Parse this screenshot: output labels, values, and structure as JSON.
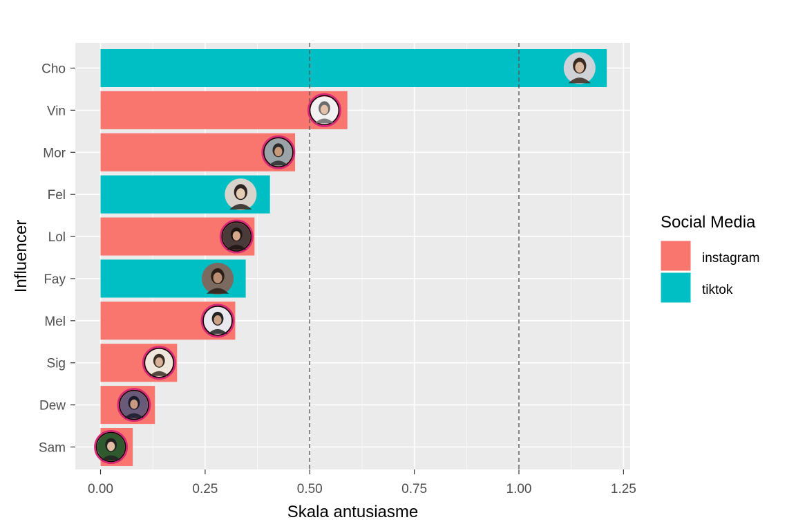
{
  "chart_data": {
    "type": "bar",
    "orientation": "horizontal",
    "title": "",
    "xlabel": "Skala antusiasme",
    "ylabel": "Influencer",
    "xlim": [
      -0.06,
      1.27
    ],
    "xticks": [
      0.0,
      0.25,
      0.5,
      0.75,
      1.0,
      1.25
    ],
    "xtick_labels": [
      "0.00",
      "0.25",
      "0.50",
      "0.75",
      "1.00",
      "1.25"
    ],
    "reference_lines": [
      0.5,
      1.0
    ],
    "grid": true,
    "legend_position": "right",
    "categories": [
      "Cho",
      "Vin",
      "Mor",
      "Fel",
      "Lol",
      "Fay",
      "Mel",
      "Sig",
      "Dew",
      "Sam"
    ],
    "values": [
      1.21,
      0.59,
      0.465,
      0.405,
      0.368,
      0.347,
      0.322,
      0.183,
      0.13,
      0.077
    ],
    "avatar_positions": [
      1.145,
      0.535,
      0.425,
      0.335,
      0.325,
      0.28,
      0.28,
      0.14,
      0.08,
      0.025
    ],
    "groups": [
      "tiktok",
      "instagram",
      "instagram",
      "tiktok",
      "instagram",
      "tiktok",
      "instagram",
      "instagram",
      "instagram",
      "instagram"
    ],
    "legend": {
      "title": "Social Media",
      "entries": [
        {
          "name": "instagram",
          "color": "#F8766D"
        },
        {
          "name": "tiktok",
          "color": "#00BFC4"
        }
      ]
    }
  },
  "colors": {
    "panel_bg": "#EBEBEB",
    "grid_major": "#FFFFFF",
    "instagram": "#F8766D",
    "tiktok": "#00BFC4",
    "reference_line": "#666666"
  }
}
